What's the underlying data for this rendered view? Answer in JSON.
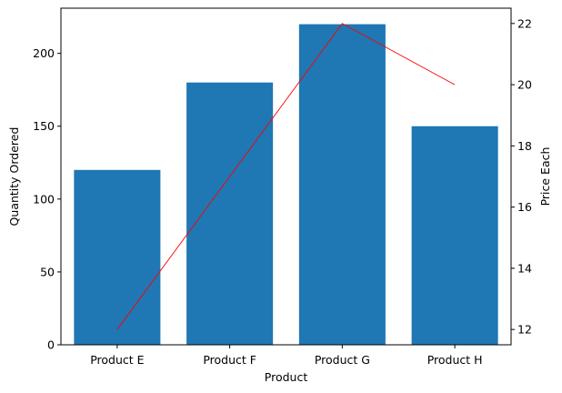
{
  "chart_data": {
    "type": "bar",
    "title": "",
    "xlabel": "Product",
    "ylabel": "Quantity Ordered",
    "y2label": "Price Each",
    "categories": [
      "Product E",
      "Product F",
      "Product G",
      "Product H"
    ],
    "series": [
      {
        "kind": "bar",
        "axis": "left",
        "values": [
          120,
          180,
          220,
          150
        ],
        "color": "#1f77b4"
      },
      {
        "kind": "line",
        "axis": "right",
        "values": [
          12,
          17,
          22,
          20
        ],
        "color": "#ff0000"
      }
    ],
    "ylim": [
      0,
      231
    ],
    "y2lim": [
      11.5,
      22.5
    ],
    "yticks": [
      0,
      50,
      100,
      150,
      200
    ],
    "y2ticks": [
      12,
      14,
      16,
      18,
      20,
      22
    ],
    "grid": false,
    "legend": "none"
  }
}
